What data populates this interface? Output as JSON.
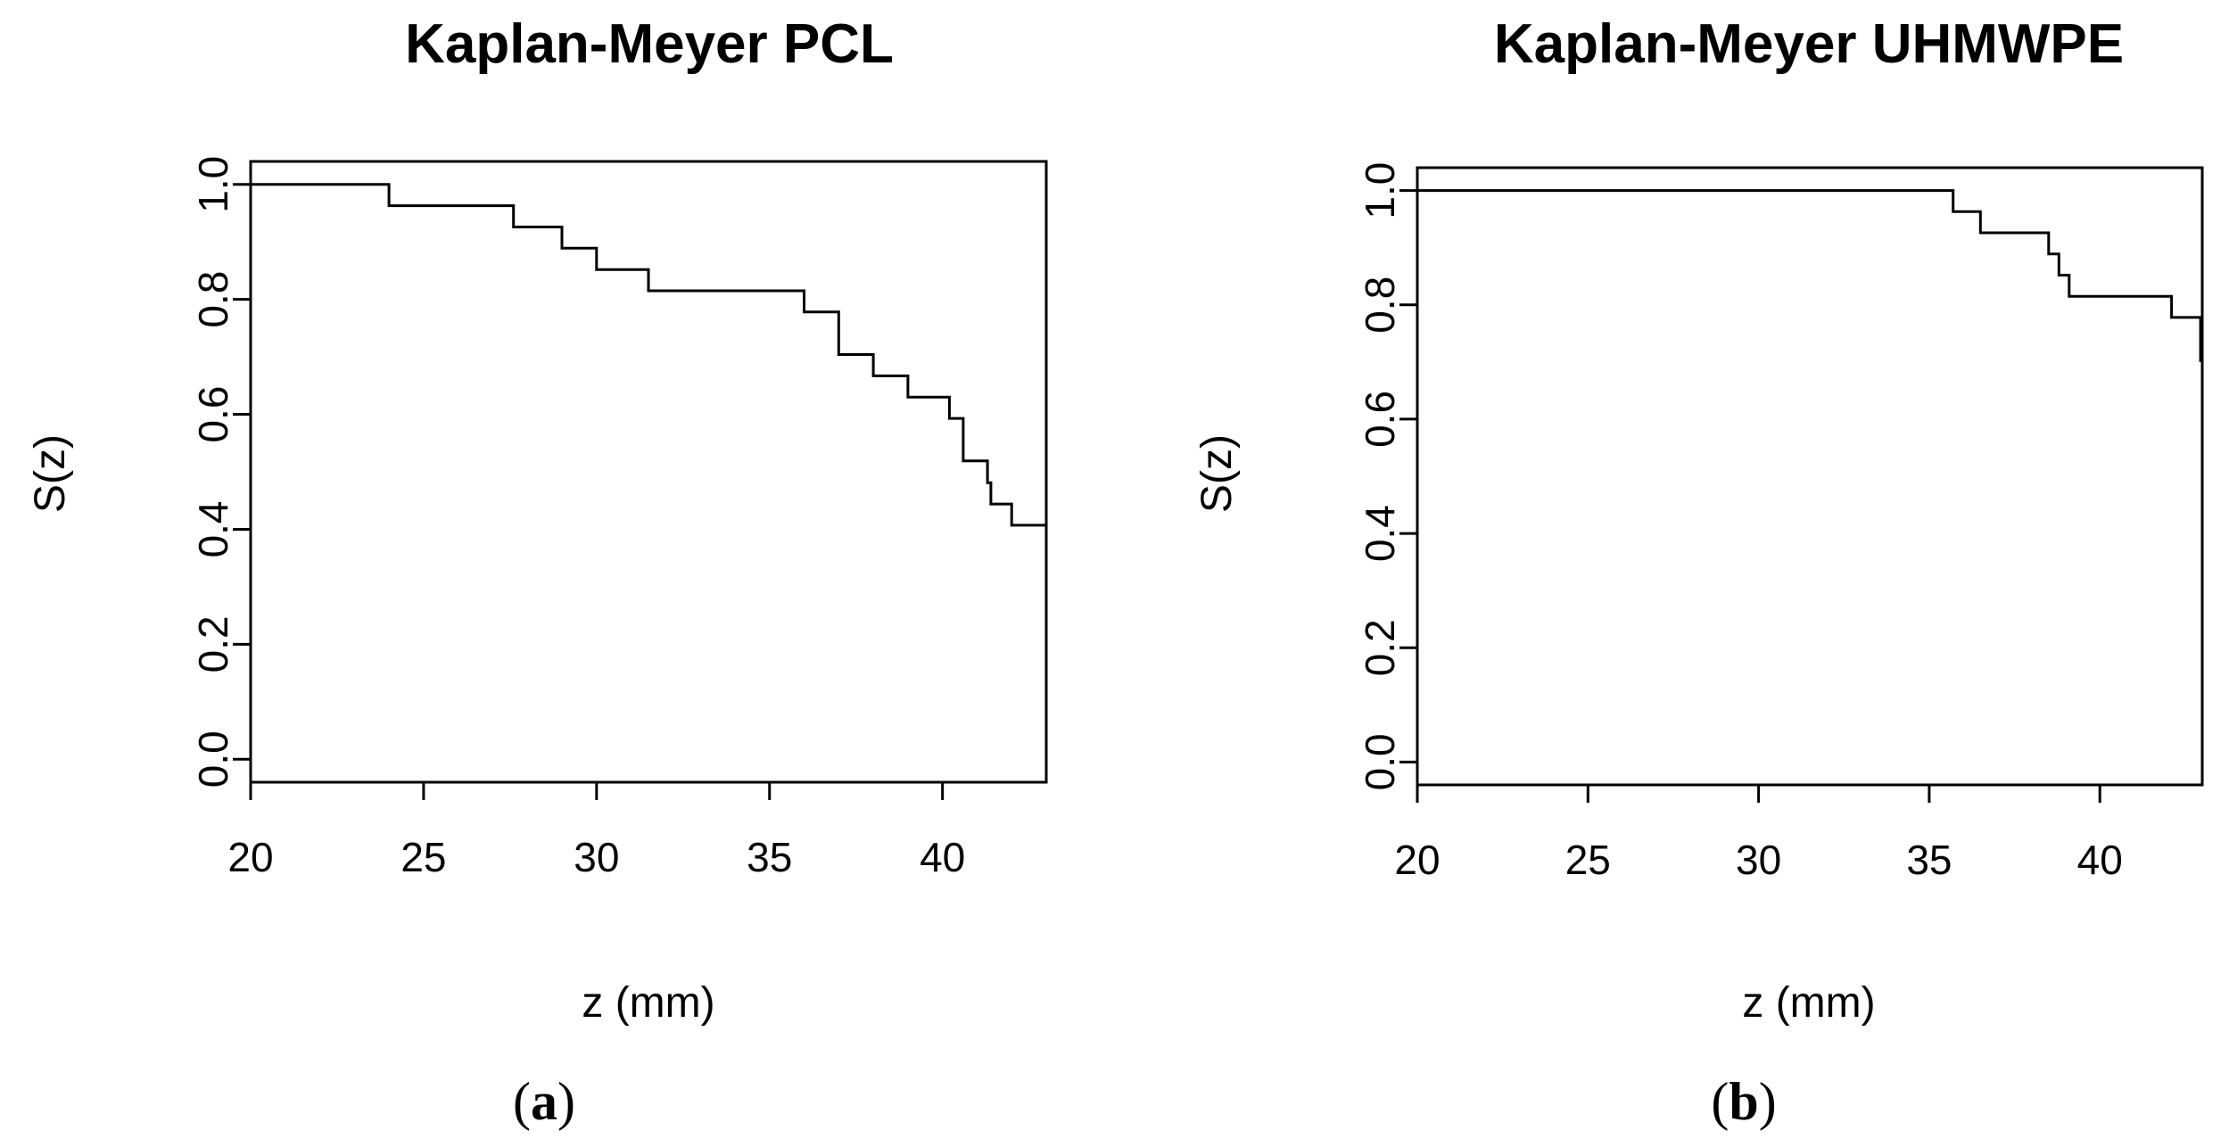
{
  "chart_data": [
    {
      "panel_label_open": "(",
      "panel_label_letter": "a",
      "panel_label_close": ")",
      "type": "line",
      "step": true,
      "title": "Kaplan-Meyer PCL",
      "xlabel": "z (mm)",
      "ylabel": "S(z)",
      "xlim": [
        20,
        43
      ],
      "ylim": [
        -0.04,
        1.04
      ],
      "x_ticks": [
        20,
        25,
        30,
        35,
        40
      ],
      "x_tick_labels": [
        "20",
        "25",
        "30",
        "35",
        "40"
      ],
      "y_ticks": [
        0.0,
        0.2,
        0.4,
        0.6,
        0.8,
        1.0
      ],
      "y_tick_labels": [
        "0.0",
        "0.2",
        "0.4",
        "0.6",
        "0.8",
        "1.0"
      ],
      "x": [
        20,
        24.0,
        27.6,
        29.0,
        30.0,
        31.5,
        36.0,
        37.0,
        38.0,
        39.0,
        40.2,
        40.6,
        41.3,
        41.4,
        41.5,
        42.0,
        43
      ],
      "y": [
        1.0,
        0.963,
        0.926,
        0.889,
        0.852,
        0.815,
        0.778,
        0.704,
        0.667,
        0.63,
        0.593,
        0.519,
        0.481,
        0.444,
        0.444,
        0.407,
        0.407
      ]
    },
    {
      "panel_label_open": "(",
      "panel_label_letter": "b",
      "panel_label_close": ")",
      "type": "line",
      "step": true,
      "title": "Kaplan-Meyer UHMWPE",
      "xlabel": "z (mm)",
      "ylabel": "S(z)",
      "xlim": [
        20,
        43
      ],
      "ylim": [
        -0.04,
        1.04
      ],
      "x_ticks": [
        20,
        25,
        30,
        35,
        40
      ],
      "x_tick_labels": [
        "20",
        "25",
        "30",
        "35",
        "40"
      ],
      "y_ticks": [
        0.0,
        0.2,
        0.4,
        0.6,
        0.8,
        1.0
      ],
      "y_tick_labels": [
        "0.0",
        "0.2",
        "0.4",
        "0.6",
        "0.8",
        "1.0"
      ],
      "x": [
        20,
        35.7,
        36.5,
        38.5,
        38.8,
        39.1,
        39.4,
        42.1,
        42.9,
        42.95
      ],
      "y": [
        1.0,
        0.963,
        0.926,
        0.889,
        0.852,
        0.815,
        0.815,
        0.778,
        0.778,
        0.7
      ]
    }
  ]
}
